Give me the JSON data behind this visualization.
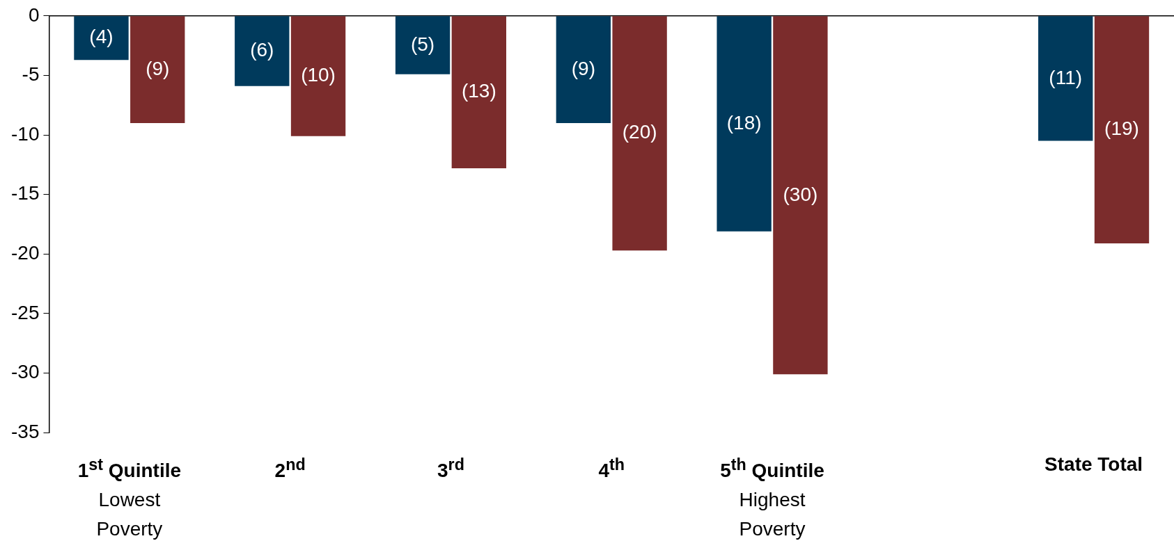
{
  "chart_data": {
    "type": "bar",
    "categories": [
      "1$^{st}$ Quintile\nLowest Poverty",
      "2$^{nd}$",
      "3$^{rd}$",
      "4$^{th}$",
      "5$^{th}$ Quintile\nHighest Poverty",
      null,
      "State Total"
    ],
    "series": [
      {
        "color": "#003a5c",
        "values": [
          -3.7,
          -5.9,
          -4.9,
          -9,
          -18.1,
          null,
          -10.5
        ],
        "value_labels": [
          "(4)",
          "(6)",
          "(5)",
          "(9)",
          "(18)",
          null,
          "(11)"
        ]
      },
      {
        "color": "#7b2c2c",
        "values": [
          -9,
          -10.1,
          -12.8,
          -19.7,
          -30.1,
          null,
          -19.1
        ],
        "value_labels": [
          "(9)",
          "(10)",
          "(13)",
          "(20)",
          "(30)",
          null,
          "(19)"
        ]
      }
    ],
    "ylim": [
      -35,
      0
    ],
    "yticks": [
      0,
      -5,
      -10,
      -15,
      -20,
      -25,
      -30,
      -35
    ],
    "grid": false,
    "legend": false
  }
}
